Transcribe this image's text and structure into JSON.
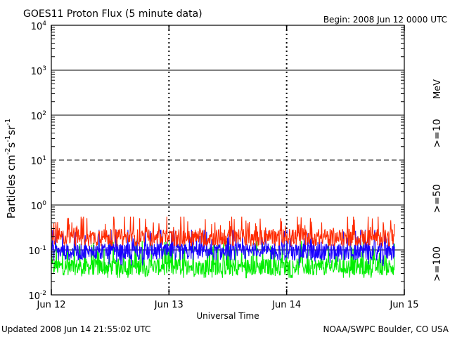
{
  "title": "GOES11 Proton Flux (5 minute data)",
  "begin_label": "Begin: 2008 Jun 12 0000 UTC",
  "updated_label": "Updated 2008 Jun 14 21:55:02 UTC",
  "credit_label": "NOAA/SWPC Boulder, CO USA",
  "colors": {
    "ge10": "#ff2a00",
    "ge50": "#1a00ff",
    "ge100": "#00ee00",
    "axis": "#000000"
  },
  "chart_data": {
    "type": "line",
    "title": "GOES11 Proton Flux (5 minute data)",
    "xlabel": "Universal Time",
    "ylabel": {
      "base": "Particles cm",
      "exp1": "-2",
      "mid1": "s",
      "exp2": "-1",
      "mid2": "sr",
      "exp3": "-1"
    },
    "yscale": "log",
    "ylim": [
      0.01,
      10000
    ],
    "xlim": [
      0,
      72
    ],
    "x_unit": "hours since 2008 Jun 12 0000 UTC",
    "y_ticks": [
      {
        "base": "10",
        "exp": "4",
        "value": 10000
      },
      {
        "base": "10",
        "exp": "3",
        "value": 1000
      },
      {
        "base": "10",
        "exp": "2",
        "value": 100
      },
      {
        "base": "10",
        "exp": "1",
        "value": 10
      },
      {
        "base": "10",
        "exp": "0",
        "value": 1
      },
      {
        "base": "10",
        "exp": "-1",
        "value": 0.1
      },
      {
        "base": "10",
        "exp": "-2",
        "value": 0.01
      }
    ],
    "x_ticks": [
      "Jun 12",
      "Jun 13",
      "Jun 14",
      "Jun 15"
    ],
    "dashed_reference_level": 10,
    "data_end": 70.0,
    "legend_title": "MeV",
    "series": [
      {
        "name": ">=10",
        "key": "ge10",
        "typical_level": 0.19,
        "spike_max": 0.55,
        "min": 0.12
      },
      {
        "name": ">=50",
        "key": "ge50",
        "typical_level": 0.09,
        "spike_max": 0.28,
        "min": 0.045
      },
      {
        "name": ">=100",
        "key": "ge100",
        "typical_level": 0.042,
        "spike_max": 0.16,
        "min": 0.024
      }
    ]
  }
}
